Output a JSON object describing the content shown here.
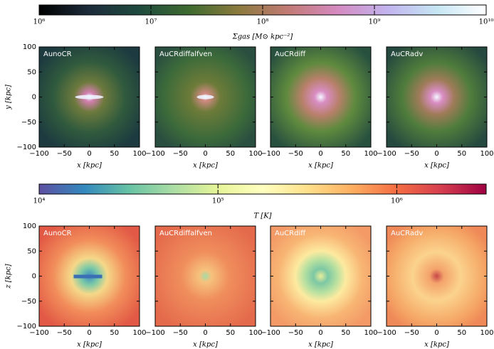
{
  "chart_data": [
    {
      "type": "colorbar",
      "label": "Σgas [M⊙ kpc⁻²]",
      "log_scale": true,
      "xlim": [
        1000000,
        10000000000
      ],
      "xticks": [
        {
          "value": 1000000,
          "label": "10⁶"
        },
        {
          "value": 10000000,
          "label": "10⁷"
        },
        {
          "value": 100000000,
          "label": "10⁸"
        },
        {
          "value": 1000000000,
          "label": "10⁹"
        },
        {
          "value": 10000000000,
          "label": "10¹⁰"
        }
      ],
      "colors": [
        "#000000",
        "#1c2b3a",
        "#1e4a3f",
        "#3d6a2f",
        "#8a7a3c",
        "#c27a74",
        "#d58ac0",
        "#c2b3ee",
        "#c6e6f4",
        "#ffffff"
      ]
    },
    {
      "type": "image",
      "title": "AunoCR",
      "xlabel": "x [kpc]",
      "ylabel": "y [kpc]",
      "xlim": [
        -100,
        100
      ],
      "ylim": [
        -100,
        100
      ],
      "xticks": [
        {
          "value": -100,
          "label": "−100"
        },
        {
          "value": -50,
          "label": "−50"
        },
        0,
        50,
        100
      ],
      "yticks": [
        {
          "value": -100,
          "label": "−100"
        },
        {
          "value": -50,
          "label": "−50"
        },
        0,
        50,
        100
      ]
    },
    {
      "type": "image",
      "title": "AuCRdiffalfven",
      "xlabel": "x [kpc]",
      "xlim": [
        -100,
        100
      ],
      "ylim": [
        -100,
        100
      ],
      "xticks": [
        {
          "value": -100,
          "label": "−100"
        },
        {
          "value": -50,
          "label": "−50"
        },
        0,
        50,
        100
      ],
      "yticks": [
        -100,
        -50,
        0,
        50,
        100
      ]
    },
    {
      "type": "image",
      "title": "AuCRdiff",
      "xlabel": "x [kpc]",
      "xlim": [
        -100,
        100
      ],
      "ylim": [
        -100,
        100
      ],
      "xticks": [
        {
          "value": -100,
          "label": "−100"
        },
        {
          "value": -50,
          "label": "−50"
        },
        0,
        50,
        100
      ],
      "yticks": [
        -100,
        -50,
        0,
        50,
        100
      ]
    },
    {
      "type": "image",
      "title": "AuCRadv",
      "xlabel": "x [kpc]",
      "xlim": [
        -100,
        100
      ],
      "ylim": [
        -100,
        100
      ],
      "xticks": [
        {
          "value": -100,
          "label": "−100"
        },
        {
          "value": -50,
          "label": "−50"
        },
        0,
        50,
        100
      ],
      "yticks": [
        -100,
        -50,
        0,
        50,
        100
      ]
    },
    {
      "type": "colorbar",
      "label": "T [K]",
      "log_scale": true,
      "xlim": [
        10000,
        3162278
      ],
      "xticks": [
        {
          "value": 10000,
          "label": "10⁴"
        },
        {
          "value": 100000,
          "label": "10⁵"
        },
        {
          "value": 1000000,
          "label": "10⁶"
        }
      ],
      "colors": [
        "#5e4fa2",
        "#3288bd",
        "#66c2a5",
        "#abdda4",
        "#e6f598",
        "#ffffbf",
        "#fee08b",
        "#fdae61",
        "#f46d43",
        "#d53e4f",
        "#9e0142"
      ]
    },
    {
      "type": "image",
      "title": "AunoCR",
      "xlabel": "x [kpc]",
      "ylabel": "z [kpc]",
      "xlim": [
        -100,
        100
      ],
      "ylim": [
        -100,
        100
      ],
      "xticks": [
        {
          "value": -100,
          "label": "−100"
        },
        {
          "value": -50,
          "label": "−50"
        },
        0,
        50,
        100
      ],
      "yticks": [
        {
          "value": -100,
          "label": "−100"
        },
        {
          "value": -50,
          "label": "−50"
        },
        0,
        50,
        100
      ]
    },
    {
      "type": "image",
      "title": "AuCRdiffalfven",
      "xlabel": "x [kpc]",
      "xlim": [
        -100,
        100
      ],
      "ylim": [
        -100,
        100
      ],
      "xticks": [
        {
          "value": -100,
          "label": "−100"
        },
        {
          "value": -50,
          "label": "−50"
        },
        0,
        50,
        100
      ],
      "yticks": [
        -100,
        -50,
        0,
        50,
        100
      ]
    },
    {
      "type": "image",
      "title": "AuCRdiff",
      "xlabel": "x [kpc]",
      "xlim": [
        -100,
        100
      ],
      "ylim": [
        -100,
        100
      ],
      "xticks": [
        {
          "value": -100,
          "label": "−100"
        },
        {
          "value": -50,
          "label": "−50"
        },
        0,
        50,
        100
      ],
      "yticks": [
        -100,
        -50,
        0,
        50,
        100
      ]
    },
    {
      "type": "image",
      "title": "AuCRadv",
      "xlabel": "x [kpc]",
      "xlim": [
        -100,
        100
      ],
      "ylim": [
        -100,
        100
      ],
      "xticks": [
        {
          "value": -100,
          "label": "−100"
        },
        {
          "value": -50,
          "label": "−50"
        },
        0,
        50,
        100
      ],
      "yticks": [
        -100,
        -50,
        0,
        50,
        100
      ]
    }
  ]
}
